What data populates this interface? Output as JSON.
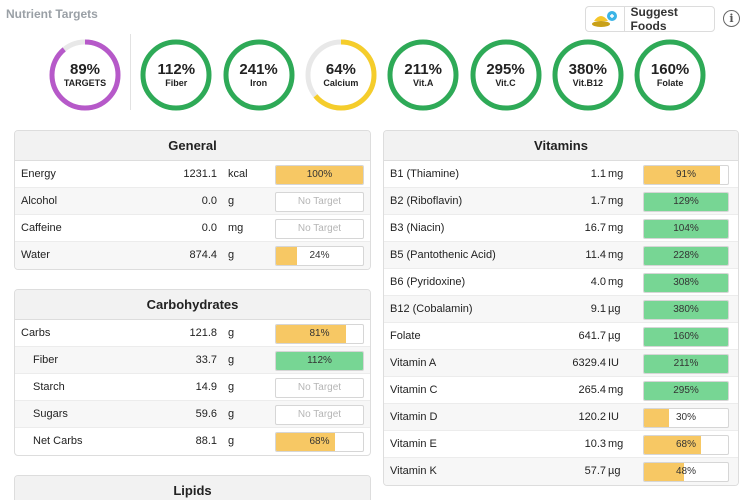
{
  "header": {
    "title": "Nutrient Targets"
  },
  "suggest": {
    "label": "Suggest Foods"
  },
  "info": {
    "glyph": "i"
  },
  "colors": {
    "green": "#2eaa57",
    "purple": "#b659c9",
    "yellow": "#f5cd2b",
    "track": "#e8e8e8",
    "bar_green": "#77d694",
    "bar_yellow": "#f7c864"
  },
  "rings": [
    {
      "pct": "89%",
      "label": "TARGETS",
      "value": 0.89,
      "color": "purple"
    },
    {
      "pct": "112%",
      "label": "Fiber",
      "value": 1.12,
      "color": "green"
    },
    {
      "pct": "241%",
      "label": "Iron",
      "value": 2.41,
      "color": "green"
    },
    {
      "pct": "64%",
      "label": "Calcium",
      "value": 0.64,
      "color": "yellow"
    },
    {
      "pct": "211%",
      "label": "Vit.A",
      "value": 2.11,
      "color": "green"
    },
    {
      "pct": "295%",
      "label": "Vit.C",
      "value": 2.95,
      "color": "green"
    },
    {
      "pct": "380%",
      "label": "Vit.B12",
      "value": 3.8,
      "color": "green"
    },
    {
      "pct": "160%",
      "label": "Folate",
      "value": 1.6,
      "color": "green"
    }
  ],
  "general": {
    "title": "General",
    "rows": [
      {
        "name": "Energy",
        "amount": "1231.1",
        "unit": "kcal",
        "pct": "100%",
        "value": 1.0
      },
      {
        "name": "Alcohol",
        "amount": "0.0",
        "unit": "g",
        "pct": "No Target",
        "value": null
      },
      {
        "name": "Caffeine",
        "amount": "0.0",
        "unit": "mg",
        "pct": "No Target",
        "value": null
      },
      {
        "name": "Water",
        "amount": "874.4",
        "unit": "g",
        "pct": "24%",
        "value": 0.24
      }
    ]
  },
  "carbs": {
    "title": "Carbohydrates",
    "rows": [
      {
        "name": "Carbs",
        "amount": "121.8",
        "unit": "g",
        "pct": "81%",
        "value": 0.81,
        "indent": false
      },
      {
        "name": "Fiber",
        "amount": "33.7",
        "unit": "g",
        "pct": "112%",
        "value": 1.12,
        "indent": true
      },
      {
        "name": "Starch",
        "amount": "14.9",
        "unit": "g",
        "pct": "No Target",
        "value": null,
        "indent": true
      },
      {
        "name": "Sugars",
        "amount": "59.6",
        "unit": "g",
        "pct": "No Target",
        "value": null,
        "indent": true
      },
      {
        "name": "Net Carbs",
        "amount": "88.1",
        "unit": "g",
        "pct": "68%",
        "value": 0.68,
        "indent": true
      }
    ]
  },
  "lipids": {
    "title": "Lipids"
  },
  "vitamins": {
    "title": "Vitamins",
    "rows": [
      {
        "name": "B1 (Thiamine)",
        "amount": "1.1",
        "unit": "mg",
        "pct": "91%",
        "value": 0.91
      },
      {
        "name": "B2 (Riboflavin)",
        "amount": "1.7",
        "unit": "mg",
        "pct": "129%",
        "value": 1.29
      },
      {
        "name": "B3 (Niacin)",
        "amount": "16.7",
        "unit": "mg",
        "pct": "104%",
        "value": 1.04
      },
      {
        "name": "B5 (Pantothenic Acid)",
        "amount": "11.4",
        "unit": "mg",
        "pct": "228%",
        "value": 2.28
      },
      {
        "name": "B6 (Pyridoxine)",
        "amount": "4.0",
        "unit": "mg",
        "pct": "308%",
        "value": 3.08
      },
      {
        "name": "B12 (Cobalamin)",
        "amount": "9.1",
        "unit": "µg",
        "pct": "380%",
        "value": 3.8
      },
      {
        "name": "Folate",
        "amount": "641.7",
        "unit": "µg",
        "pct": "160%",
        "value": 1.6
      },
      {
        "name": "Vitamin A",
        "amount": "6329.4",
        "unit": "IU",
        "pct": "211%",
        "value": 2.11
      },
      {
        "name": "Vitamin C",
        "amount": "265.4",
        "unit": "mg",
        "pct": "295%",
        "value": 2.95
      },
      {
        "name": "Vitamin D",
        "amount": "120.2",
        "unit": "IU",
        "pct": "30%",
        "value": 0.3
      },
      {
        "name": "Vitamin E",
        "amount": "10.3",
        "unit": "mg",
        "pct": "68%",
        "value": 0.68
      },
      {
        "name": "Vitamin K",
        "amount": "57.7",
        "unit": "µg",
        "pct": "48%",
        "value": 0.48
      }
    ]
  }
}
